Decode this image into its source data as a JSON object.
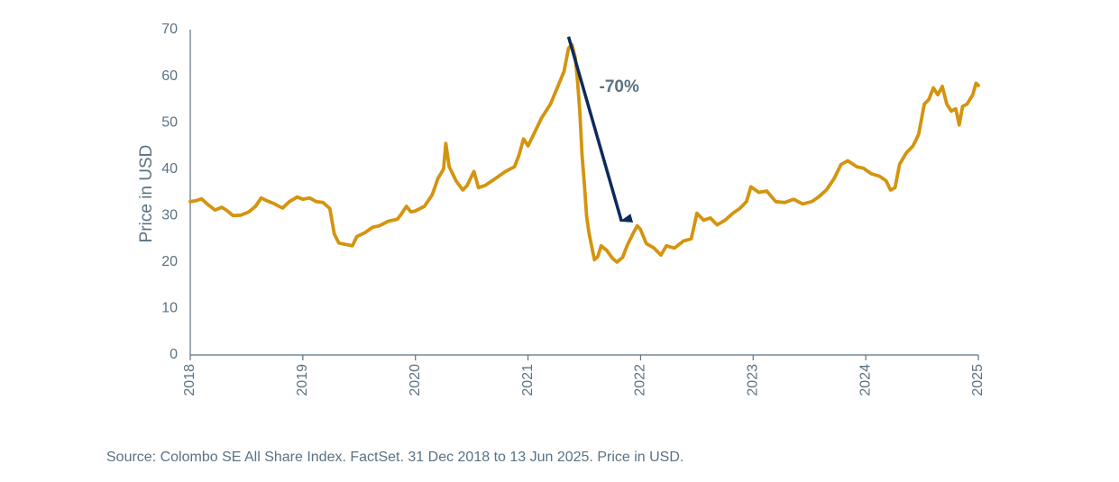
{
  "chart_data": {
    "type": "line",
    "title": "",
    "ylabel": "Price in USD",
    "xlabel": "",
    "ylim": [
      0,
      70
    ],
    "yticks": [
      0,
      10,
      20,
      30,
      40,
      50,
      60,
      70
    ],
    "xlim": [
      2018,
      2025
    ],
    "xticks": [
      "2018",
      "2019",
      "2020",
      "2021",
      "2022",
      "2023",
      "2024",
      "2025"
    ],
    "grid": false,
    "legend": "none",
    "series": [
      {
        "color": "#d4940f",
        "points": [
          [
            2018.0,
            33.0
          ],
          [
            2018.05,
            33.2
          ],
          [
            2018.1,
            33.6
          ],
          [
            2018.15,
            32.5
          ],
          [
            2018.22,
            31.2
          ],
          [
            2018.28,
            31.8
          ],
          [
            2018.33,
            31.0
          ],
          [
            2018.38,
            30.0
          ],
          [
            2018.45,
            30.1
          ],
          [
            2018.52,
            30.8
          ],
          [
            2018.58,
            32.0
          ],
          [
            2018.63,
            33.8
          ],
          [
            2018.68,
            33.2
          ],
          [
            2018.75,
            32.5
          ],
          [
            2018.82,
            31.6
          ],
          [
            2018.88,
            33.0
          ],
          [
            2018.95,
            34.0
          ],
          [
            2019.0,
            33.5
          ],
          [
            2019.06,
            33.8
          ],
          [
            2019.12,
            33.0
          ],
          [
            2019.18,
            32.8
          ],
          [
            2019.24,
            31.5
          ],
          [
            2019.28,
            26.0
          ],
          [
            2019.32,
            24.1
          ],
          [
            2019.38,
            23.8
          ],
          [
            2019.44,
            23.5
          ],
          [
            2019.48,
            25.5
          ],
          [
            2019.55,
            26.3
          ],
          [
            2019.62,
            27.5
          ],
          [
            2019.68,
            27.8
          ],
          [
            2019.76,
            28.8
          ],
          [
            2019.84,
            29.2
          ],
          [
            2019.88,
            30.5
          ],
          [
            2019.92,
            32.0
          ],
          [
            2019.96,
            30.8
          ],
          [
            2020.0,
            31.0
          ],
          [
            2020.08,
            32.0
          ],
          [
            2020.15,
            34.5
          ],
          [
            2020.2,
            38.0
          ],
          [
            2020.25,
            40.0
          ],
          [
            2020.27,
            45.5
          ],
          [
            2020.3,
            40.5
          ],
          [
            2020.36,
            37.5
          ],
          [
            2020.42,
            35.5
          ],
          [
            2020.46,
            36.5
          ],
          [
            2020.52,
            39.5
          ],
          [
            2020.56,
            36.0
          ],
          [
            2020.62,
            36.5
          ],
          [
            2020.7,
            37.8
          ],
          [
            2020.8,
            39.5
          ],
          [
            2020.88,
            40.5
          ],
          [
            2020.92,
            43.0
          ],
          [
            2020.96,
            46.5
          ],
          [
            2021.0,
            45.0
          ],
          [
            2021.06,
            48.0
          ],
          [
            2021.12,
            51.0
          ],
          [
            2021.2,
            54.0
          ],
          [
            2021.26,
            57.5
          ],
          [
            2021.32,
            61.0
          ],
          [
            2021.36,
            66.0
          ],
          [
            2021.39,
            66.8
          ],
          [
            2021.42,
            64.0
          ],
          [
            2021.44,
            59.0
          ],
          [
            2021.46,
            52.5
          ],
          [
            2021.48,
            43.0
          ],
          [
            2021.5,
            37.0
          ],
          [
            2021.52,
            30.0
          ],
          [
            2021.54,
            26.5
          ],
          [
            2021.56,
            24.0
          ],
          [
            2021.59,
            20.5
          ],
          [
            2021.62,
            21.2
          ],
          [
            2021.65,
            23.5
          ],
          [
            2021.7,
            22.5
          ],
          [
            2021.75,
            20.8
          ],
          [
            2021.79,
            20.0
          ],
          [
            2021.84,
            21.0
          ],
          [
            2021.88,
            23.5
          ],
          [
            2021.93,
            26.0
          ],
          [
            2021.97,
            27.8
          ],
          [
            2022.0,
            27.0
          ],
          [
            2022.05,
            24.0
          ],
          [
            2022.12,
            23.0
          ],
          [
            2022.18,
            21.5
          ],
          [
            2022.23,
            23.5
          ],
          [
            2022.3,
            23.0
          ],
          [
            2022.38,
            24.5
          ],
          [
            2022.45,
            25.0
          ],
          [
            2022.5,
            30.5
          ],
          [
            2022.56,
            29.0
          ],
          [
            2022.62,
            29.5
          ],
          [
            2022.68,
            28.0
          ],
          [
            2022.75,
            29.0
          ],
          [
            2022.82,
            30.5
          ],
          [
            2022.88,
            31.5
          ],
          [
            2022.94,
            33.0
          ],
          [
            2022.98,
            36.2
          ],
          [
            2023.05,
            35.0
          ],
          [
            2023.12,
            35.3
          ],
          [
            2023.2,
            33.0
          ],
          [
            2023.28,
            32.8
          ],
          [
            2023.36,
            33.5
          ],
          [
            2023.44,
            32.5
          ],
          [
            2023.52,
            33.0
          ],
          [
            2023.58,
            34.0
          ],
          [
            2023.65,
            35.5
          ],
          [
            2023.72,
            38.0
          ],
          [
            2023.78,
            41.0
          ],
          [
            2023.84,
            41.8
          ],
          [
            2023.92,
            40.5
          ],
          [
            2023.98,
            40.2
          ],
          [
            2024.05,
            39.0
          ],
          [
            2024.12,
            38.5
          ],
          [
            2024.18,
            37.5
          ],
          [
            2024.22,
            35.5
          ],
          [
            2024.26,
            36.0
          ],
          [
            2024.3,
            41.0
          ],
          [
            2024.36,
            43.5
          ],
          [
            2024.42,
            45.0
          ],
          [
            2024.47,
            47.5
          ],
          [
            2024.52,
            54.0
          ],
          [
            2024.56,
            55.0
          ],
          [
            2024.6,
            57.5
          ],
          [
            2024.64,
            56.0
          ],
          [
            2024.68,
            57.8
          ],
          [
            2024.72,
            54.0
          ],
          [
            2024.76,
            52.5
          ],
          [
            2024.8,
            53.0
          ],
          [
            2024.83,
            49.5
          ],
          [
            2024.86,
            53.5
          ],
          [
            2024.9,
            54.0
          ],
          [
            2024.95,
            56.0
          ],
          [
            2024.98,
            58.5
          ],
          [
            2025.0,
            58.0
          ]
        ]
      }
    ],
    "annotations": [
      {
        "text": "-70%",
        "color": "#0d2a5c",
        "from": [
          2021.36,
          68.5
        ],
        "to": [
          2021.83,
          26.5
        ]
      }
    ]
  },
  "footer": {
    "source": "Source: Colombo SE All Share Index. FactSet. 31 Dec 2018 to 13 Jun 2025. Price in USD."
  },
  "colors": {
    "axis": "#5a7282",
    "line": "#d4940f",
    "arrow": "#0d2a5c"
  }
}
